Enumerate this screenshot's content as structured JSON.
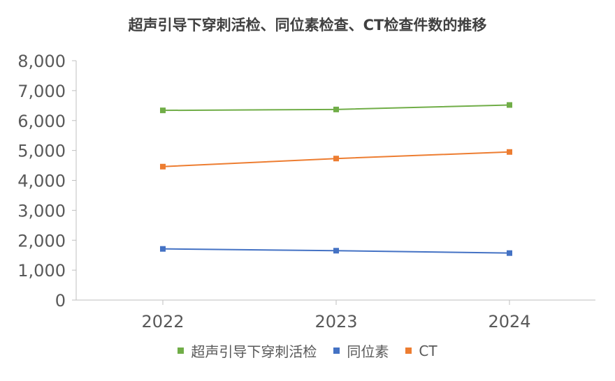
{
  "chart_data": {
    "type": "line",
    "title": "超声引导下穿刺活检、同位素检查、CT检查件数的推移",
    "categories": [
      "2022",
      "2023",
      "2024"
    ],
    "ylim": [
      0,
      8000
    ],
    "yticks": [
      0,
      1000,
      2000,
      3000,
      4000,
      5000,
      6000,
      7000,
      8000
    ],
    "ytick_labels": [
      "0",
      "1,000",
      "2,000",
      "3,000",
      "4,000",
      "5,000",
      "6,000",
      "7,000",
      "8,000"
    ],
    "grid": false,
    "legend_position": "bottom",
    "series": [
      {
        "name": "超声引导下穿刺活检",
        "color": "#70AD47",
        "values": [
          6340,
          6370,
          6520
        ]
      },
      {
        "name": "同位素",
        "color": "#4472C4",
        "values": [
          1710,
          1650,
          1570
        ]
      },
      {
        "name": "CT",
        "color": "#ED7D31",
        "values": [
          4460,
          4730,
          4950
        ]
      }
    ]
  }
}
